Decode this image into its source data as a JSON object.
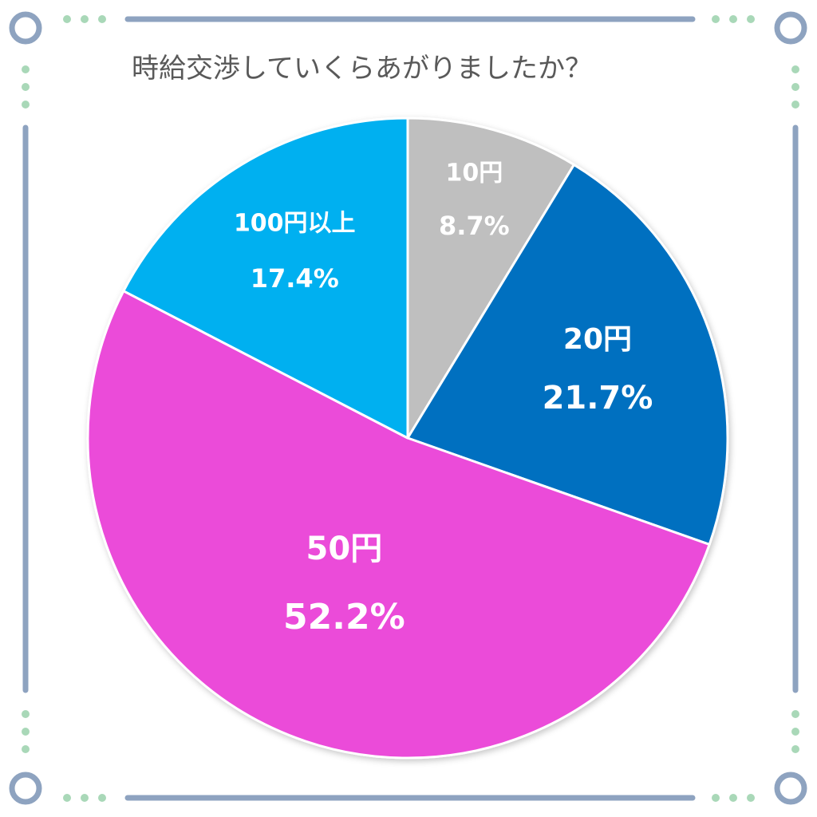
{
  "chart_data": {
    "type": "pie",
    "title": "時給交渉していくらあがりましたか？",
    "start_angle_deg": 0,
    "direction": "clockwise",
    "slices": [
      {
        "label": "10円",
        "percent_label": "8.7%",
        "value": 8.7,
        "color": "#bfbfbf"
      },
      {
        "label": "20円",
        "percent_label": "21.7%",
        "value": 21.7,
        "color": "#0070c0"
      },
      {
        "label": "50円",
        "percent_label": "52.2%",
        "value": 52.2,
        "color": "#eb4bd9"
      },
      {
        "label": "100円以上",
        "percent_label": "17.4%",
        "value": 17.4,
        "color": "#00b0f0"
      }
    ]
  },
  "colors": {
    "frame": "#8ea3c0",
    "dots": "#a9d8b8",
    "title": "#595959",
    "slice_border": "#ffffff"
  }
}
